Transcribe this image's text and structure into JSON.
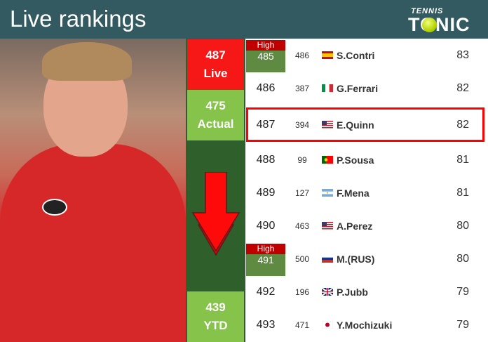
{
  "header": {
    "title": "Live rankings",
    "logo_top": "TENNIS",
    "logo_bottom": "TONIC"
  },
  "colors": {
    "header": "#335a60",
    "live": "#f61717",
    "actual": "#86c34a",
    "dark": "#2f5f2b",
    "high": "#c00000"
  },
  "summary": {
    "live_rank": "487",
    "live_label": "Live",
    "actual_rank": "475",
    "actual_label": "Actual",
    "ytd_rank": "439",
    "ytd_label": "YTD",
    "trend": "down-arrow-icon"
  },
  "rows": [
    {
      "rank": "485",
      "high": "High",
      "prev": "486",
      "flag": "es",
      "name": "S.Contri",
      "points": "83"
    },
    {
      "rank": "486",
      "prev": "387",
      "flag": "it",
      "name": "G.Ferrari",
      "points": "82"
    },
    {
      "rank": "487",
      "prev": "394",
      "flag": "us",
      "name": "E.Quinn",
      "points": "82"
    },
    {
      "rank": "488",
      "prev": "99",
      "flag": "pt",
      "name": "P.Sousa",
      "points": "81"
    },
    {
      "rank": "489",
      "prev": "127",
      "flag": "ar",
      "name": "F.Mena",
      "points": "81"
    },
    {
      "rank": "490",
      "prev": "463",
      "flag": "us",
      "name": "A.Perez",
      "points": "80"
    },
    {
      "rank": "491",
      "high": "High",
      "prev": "500",
      "flag": "ru",
      "name": "M.(RUS)",
      "points": "80"
    },
    {
      "rank": "492",
      "prev": "196",
      "flag": "gb",
      "name": "P.Jubb",
      "points": "79"
    },
    {
      "rank": "493",
      "prev": "471",
      "flag": "jp",
      "name": "Y.Mochizuki",
      "points": "79"
    }
  ]
}
